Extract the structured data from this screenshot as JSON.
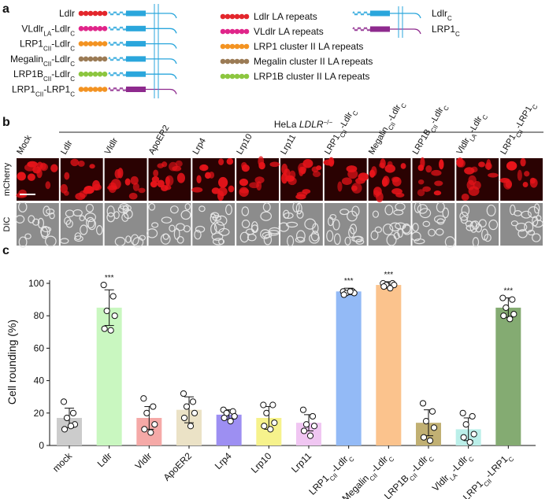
{
  "panel_a": {
    "label": "a",
    "constructs": [
      {
        "parts": [
          "Ldlr"
        ],
        "repeat": "#e3262c",
        "tail": "#2aa6dc"
      },
      {
        "parts": [
          "VLdlr",
          "LA",
          "-Ldlr",
          "C"
        ],
        "repeat": "#e0258a",
        "tail": "#2aa6dc"
      },
      {
        "parts": [
          "LRP1",
          "CII",
          "-Ldlr",
          "C"
        ],
        "repeat": "#f39322",
        "tail": "#2aa6dc"
      },
      {
        "parts": [
          "Megalin",
          "CII",
          "-Ldlr",
          "C"
        ],
        "repeat": "#9b7b55",
        "tail": "#2aa6dc"
      },
      {
        "parts": [
          "LRP1B",
          "CII",
          "-Ldlr",
          "C"
        ],
        "repeat": "#8cc63f",
        "tail": "#2aa6dc"
      },
      {
        "parts": [
          "LRP1",
          "CII",
          "-LRP1",
          "C"
        ],
        "repeat": "#f39322",
        "tail": "#8e2a8e"
      }
    ],
    "legend": [
      {
        "text": "Ldlr LA repeats",
        "color": "#e3262c"
      },
      {
        "text": "VLdlr LA repeats",
        "color": "#e0258a"
      },
      {
        "text": "LRP1 cluster II LA repeats",
        "color": "#f39322"
      },
      {
        "text": "Megalin cluster II LA repeats",
        "color": "#9b7b55"
      },
      {
        "text": "LRP1B cluster II LA repeats",
        "color": "#8cc63f"
      }
    ],
    "tails": [
      {
        "parts": [
          "Ldlr",
          "C"
        ],
        "color": "#2aa6dc"
      },
      {
        "parts": [
          "LRP1",
          "C"
        ],
        "color": "#8e2a8e"
      }
    ]
  },
  "panel_b": {
    "label": "b",
    "title": {
      "prefix": "HeLa ",
      "gene": "LDLR",
      "superscript": "−/−"
    },
    "rows": [
      "mCherry",
      "DIC"
    ],
    "columns": [
      [
        "Mock"
      ],
      [
        "Ldlr"
      ],
      [
        "Vldlr"
      ],
      [
        "ApoER2"
      ],
      [
        "Lrp4"
      ],
      [
        "Lrp10"
      ],
      [
        "Lrp11"
      ],
      [
        "LRP1",
        "CII",
        "-Ldlr",
        "C"
      ],
      [
        "Megalin",
        "CII",
        "-Ldlr",
        "C"
      ],
      [
        "LRP1B",
        "CII",
        "-Ldlr",
        "C"
      ],
      [
        "Vldlr",
        "LA",
        "-Ldlr",
        "C"
      ],
      [
        "LRP1",
        "CII",
        "-LRP1",
        "C"
      ]
    ]
  },
  "chart_data": {
    "type": "bar",
    "label": "c",
    "y_label": "Cell rounding (%)",
    "categories": [
      [
        "mock"
      ],
      [
        "Ldlr"
      ],
      [
        "Vldlr"
      ],
      [
        "ApoER2"
      ],
      [
        "Lrp4"
      ],
      [
        "Lrp10"
      ],
      [
        "Lrp11"
      ],
      [
        "LRP1",
        "CII",
        "-Ldlr",
        "C"
      ],
      [
        "Megalin",
        "CII",
        "-Ldlr",
        "C"
      ],
      [
        "LRP1B",
        "CII",
        "-Ldlr",
        "C"
      ],
      [
        "Vldlr",
        "LA",
        "-Ldlr",
        "C"
      ],
      [
        "LRP1",
        "CII",
        "-LRP1",
        "C"
      ]
    ],
    "values": [
      17,
      85,
      17,
      22,
      19,
      17,
      14,
      95,
      99,
      14,
      10,
      85
    ],
    "errors": [
      6,
      11,
      7,
      8,
      3,
      7,
      5,
      2,
      2,
      8,
      7,
      6
    ],
    "points": [
      [
        27,
        20,
        17,
        13,
        10,
        12
      ],
      [
        99,
        92,
        83,
        80,
        72,
        71
      ],
      [
        29,
        24,
        20,
        13,
        10,
        8
      ],
      [
        32,
        27,
        24,
        20,
        17,
        12
      ],
      [
        22,
        21,
        20,
        18,
        17,
        15
      ],
      [
        25,
        25,
        20,
        14,
        12,
        10
      ],
      [
        22,
        18,
        13,
        12,
        9,
        6
      ],
      [
        95,
        95,
        94,
        94,
        93,
        95
      ],
      [
        100,
        100,
        99,
        99,
        98,
        97
      ],
      [
        26,
        21,
        15,
        11,
        5,
        3
      ],
      [
        20,
        18,
        13,
        7,
        5,
        2
      ],
      [
        91,
        90,
        85,
        81,
        80,
        78
      ]
    ],
    "colors": [
      "#cccccc",
      "#c9f7c0",
      "#f5a9a7",
      "#ebe2c6",
      "#9d8ff2",
      "#f6f28c",
      "#f0c6f2",
      "#93baf6",
      "#fbc38d",
      "#c1b073",
      "#bbefe9",
      "#84ab72"
    ],
    "significance": [
      null,
      "***",
      null,
      null,
      null,
      null,
      null,
      "***",
      "***",
      null,
      null,
      "***"
    ],
    "ylim": [
      0,
      100
    ],
    "yticks": [
      0,
      20,
      40,
      60,
      80,
      100
    ]
  }
}
